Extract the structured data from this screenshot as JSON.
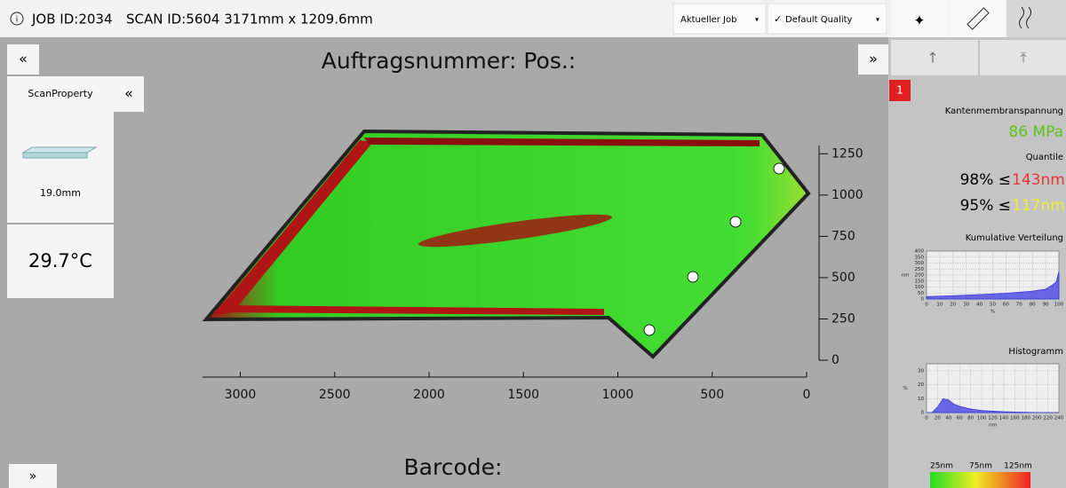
{
  "header": {
    "job": "JOB ID:2034",
    "scan": "SCAN ID:5604 3171mm x 1209.6mm"
  },
  "toolbar": {
    "job_select": "Aktueller Job",
    "quality_select": "Default Quality"
  },
  "main": {
    "title": "Auftragsnummer:  Pos.:",
    "barcode": "Barcode:"
  },
  "side": {
    "tab": "ScanProperty",
    "thickness": "19.0mm",
    "temperature": "29.7°C"
  },
  "stats": {
    "badge": "1",
    "tension_label": "Kantenmembranspannung",
    "tension": "86 MPa",
    "quantile_label": "Quantile",
    "q98": "98% ≤",
    "q98_value": "143nm",
    "q95": "95% ≤",
    "q95_value": "117nm"
  },
  "colorbar": {
    "labels": [
      "25nm",
      "75nm",
      "125nm"
    ]
  },
  "chart_data": [
    {
      "type": "scan",
      "xlim": [
        3200,
        0
      ],
      "xticks": [
        3000,
        2500,
        2000,
        1500,
        1000,
        500,
        0
      ],
      "ylim": [
        0,
        1300
      ],
      "yticks": [
        0,
        250,
        500,
        750,
        1000,
        1250
      ]
    },
    {
      "type": "line",
      "title": "Kumulative Verteilung",
      "xlabel": "%",
      "ylabel": "nm",
      "color": "#3a3ae0",
      "x": [
        0,
        10,
        20,
        30,
        40,
        50,
        60,
        70,
        80,
        90,
        95,
        98,
        100
      ],
      "values": [
        20,
        24,
        28,
        32,
        37,
        42,
        48,
        56,
        66,
        82,
        117,
        143,
        230
      ],
      "xlim": [
        0,
        100
      ],
      "xticks": [
        0,
        10,
        20,
        30,
        40,
        50,
        60,
        70,
        80,
        90,
        100
      ],
      "ylim": [
        0,
        400
      ],
      "yticks": [
        0,
        50,
        100,
        150,
        200,
        250,
        300,
        350,
        400
      ]
    },
    {
      "type": "area",
      "title": "Histogramm",
      "xlabel": "nm",
      "ylabel": "%",
      "color": "#3a3ae0",
      "x": [
        0,
        10,
        20,
        30,
        40,
        50,
        60,
        70,
        80,
        100,
        120,
        140,
        160,
        180,
        200,
        220,
        240
      ],
      "values": [
        0,
        0,
        4,
        10,
        9,
        6,
        4.5,
        3.5,
        2.5,
        1.5,
        1,
        0.6,
        0.4,
        0.2,
        0.1,
        0,
        0
      ],
      "xlim": [
        0,
        240
      ],
      "xticks": [
        0,
        20,
        40,
        60,
        80,
        100,
        120,
        140,
        160,
        180,
        200,
        220,
        240
      ],
      "ylim": [
        0,
        35
      ],
      "yticks": [
        0,
        10,
        20,
        30
      ]
    }
  ]
}
